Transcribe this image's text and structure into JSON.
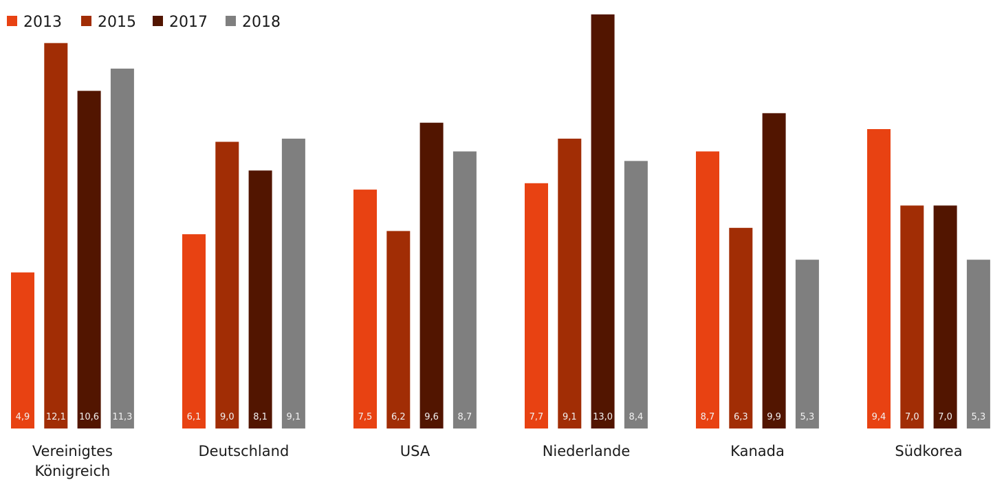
{
  "chart_data": {
    "type": "bar",
    "title": "",
    "xlabel": "",
    "ylabel": "",
    "ylim": [
      0,
      13.0
    ],
    "grid": false,
    "legend_position": "top-left",
    "categories": [
      [
        "Vereinigtes",
        "Königreich"
      ],
      [
        "Deutschland"
      ],
      [
        "USA"
      ],
      [
        "Niederlande"
      ],
      [
        "Kanada"
      ],
      [
        "Südkorea"
      ]
    ],
    "series": [
      {
        "name": "2013",
        "color": "#e84212",
        "values": [
          4.9,
          6.1,
          7.5,
          7.7,
          8.7,
          9.4
        ],
        "labels": [
          "4,9",
          "6,1",
          "7,5",
          "7,7",
          "8,7",
          "9,4"
        ]
      },
      {
        "name": "2015",
        "color": "#a12d05",
        "values": [
          12.1,
          9.0,
          6.2,
          9.1,
          6.3,
          7.0
        ],
        "labels": [
          "12,1",
          "9,0",
          "6,2",
          "9,1",
          "6,3",
          "7,0"
        ]
      },
      {
        "name": "2017",
        "color": "#521500",
        "values": [
          10.6,
          8.1,
          9.6,
          13.0,
          9.9,
          7.0
        ],
        "labels": [
          "10,6",
          "8,1",
          "9,6",
          "13,0",
          "9,9",
          "7,0"
        ]
      },
      {
        "name": "2018",
        "color": "#7f7f7f",
        "values": [
          11.3,
          9.1,
          8.7,
          8.4,
          5.3,
          5.3
        ],
        "labels": [
          "11,3",
          "9,1",
          "8,7",
          "8,4",
          "5,3",
          "5,3"
        ]
      }
    ]
  }
}
